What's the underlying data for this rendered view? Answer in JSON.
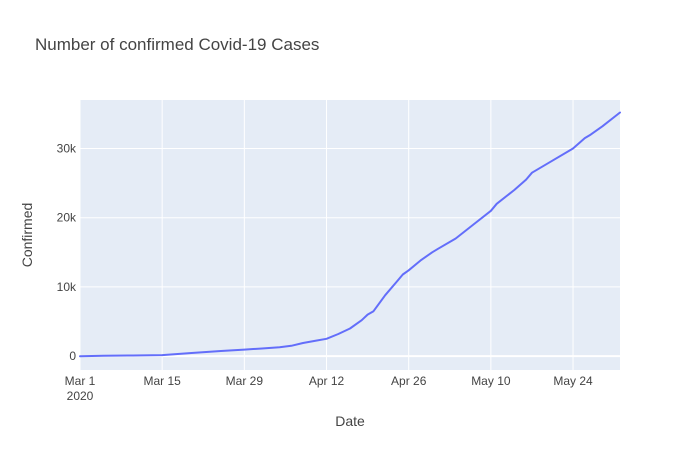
{
  "chart_data": {
    "type": "line",
    "title": "Number of confirmed Covid-19 Cases",
    "xlabel": "Date",
    "ylabel": "Confirmed",
    "x_range": [
      "2020-03-01",
      "2020-06-01"
    ],
    "ylim": [
      -2000,
      37000
    ],
    "x_ticks": [
      {
        "date": "2020-03-01",
        "label": "Mar 1",
        "sublabel": "2020"
      },
      {
        "date": "2020-03-15",
        "label": "Mar 15"
      },
      {
        "date": "2020-03-29",
        "label": "Mar 29"
      },
      {
        "date": "2020-04-12",
        "label": "Apr 12"
      },
      {
        "date": "2020-04-26",
        "label": "Apr 26"
      },
      {
        "date": "2020-05-10",
        "label": "May 10"
      },
      {
        "date": "2020-05-24",
        "label": "May 24"
      }
    ],
    "y_ticks": [
      {
        "value": 0,
        "label": "0"
      },
      {
        "value": 10000,
        "label": "10k"
      },
      {
        "value": 20000,
        "label": "20k"
      },
      {
        "value": 30000,
        "label": "30k"
      }
    ],
    "grid": true,
    "line_color": "#636efa",
    "plot_bg": "#e5ecf6",
    "series": [
      {
        "x": [
          "2020-03-01",
          "2020-03-05",
          "2020-03-10",
          "2020-03-15",
          "2020-03-20",
          "2020-03-25",
          "2020-03-29",
          "2020-04-01",
          "2020-04-04",
          "2020-04-06",
          "2020-04-08",
          "2020-04-10",
          "2020-04-12",
          "2020-04-14",
          "2020-04-16",
          "2020-04-18",
          "2020-04-19",
          "2020-04-20",
          "2020-04-22",
          "2020-04-24",
          "2020-04-25",
          "2020-04-26",
          "2020-04-28",
          "2020-04-30",
          "2020-05-01",
          "2020-05-04",
          "2020-05-07",
          "2020-05-10",
          "2020-05-11",
          "2020-05-14",
          "2020-05-16",
          "2020-05-17",
          "2020-05-20",
          "2020-05-24",
          "2020-05-26",
          "2020-05-27",
          "2020-05-29",
          "2020-06-01"
        ],
        "y": [
          0,
          50,
          100,
          150,
          450,
          750,
          950,
          1100,
          1300,
          1500,
          1900,
          2200,
          2500,
          3200,
          4000,
          5200,
          6000,
          6500,
          8800,
          10800,
          11800,
          12400,
          13800,
          15000,
          15500,
          17000,
          19000,
          21000,
          22000,
          24000,
          25500,
          26500,
          28000,
          30000,
          31500,
          32000,
          33200,
          35200
        ]
      }
    ]
  }
}
